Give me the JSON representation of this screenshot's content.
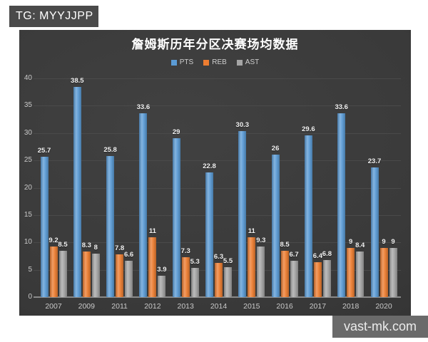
{
  "badges": {
    "top_left": "TG: MYYJJPP",
    "bottom_right": "vast-mk.com"
  },
  "chart_data": {
    "type": "bar",
    "title": "詹姆斯历年分区决赛场均数据",
    "legend_position": "top",
    "grid": true,
    "categories": [
      "2007",
      "2009",
      "2011",
      "2012",
      "2013",
      "2014",
      "2015",
      "2016",
      "2017",
      "2018",
      "2020"
    ],
    "series": [
      {
        "name": "PTS",
        "color": "#5B9BD5",
        "values": [
          25.7,
          38.5,
          25.8,
          33.6,
          29,
          22.8,
          30.3,
          26,
          29.6,
          33.6,
          23.7
        ]
      },
      {
        "name": "REB",
        "color": "#ED7D31",
        "values": [
          9.2,
          8.3,
          7.8,
          11,
          7.3,
          6.3,
          11,
          8.5,
          6.4,
          9,
          9
        ]
      },
      {
        "name": "AST",
        "color": "#A5A5A5",
        "values": [
          8.5,
          8,
          6.6,
          3.9,
          5.3,
          5.5,
          9.3,
          6.7,
          6.8,
          8.4,
          9
        ]
      }
    ],
    "ylim": [
      0,
      40
    ],
    "y_ticks": [
      0,
      5,
      10,
      15,
      20,
      25,
      30,
      35,
      40
    ],
    "xlabel": "",
    "ylabel": ""
  },
  "colors": {
    "page_background": "#ffffff",
    "plot_background": "#3a3a3a",
    "grid_line": "#4a4a4a",
    "axis_line": "#8a8a8a",
    "tick_label": "#c9c9c9",
    "data_label": "#f2f2f2",
    "title_text": "#ffffff",
    "pts_bar": "#5B9BD5",
    "reb_bar": "#ED7D31",
    "ast_bar": "#A5A5A5",
    "top_badge_bg": "#4a4a4a",
    "top_badge_text": "#ffffff",
    "bottom_badge_bg": "#6a6a6a",
    "bottom_badge_text": "#ececec"
  }
}
